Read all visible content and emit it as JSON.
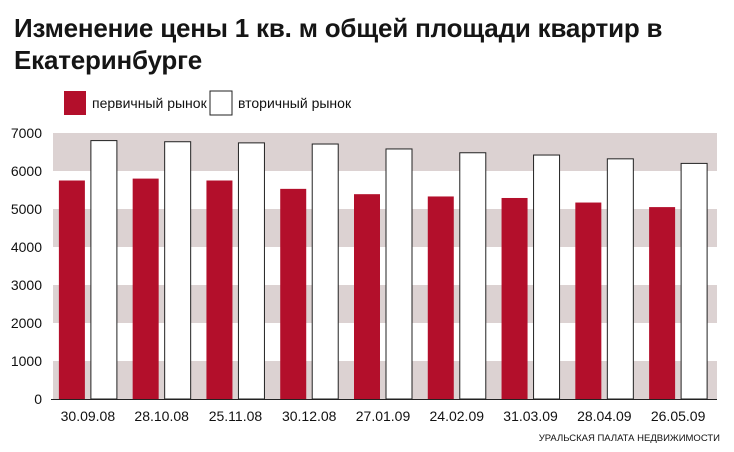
{
  "chart_data": {
    "type": "bar",
    "title": "Изменение цены 1 кв. м общей площади квартир в Екатеринбурге",
    "categories": [
      "30.09.08",
      "28.10.08",
      "25.11.08",
      "30.12.08",
      "27.01.09",
      "24.02.09",
      "31.03.09",
      "28.04.09",
      "26.05.09"
    ],
    "series": [
      {
        "name": "первичный рынок",
        "color": "#b30f2b",
        "values": [
          5750,
          5800,
          5750,
          5530,
          5390,
          5330,
          5290,
          5170,
          5050
        ]
      },
      {
        "name": "вторичный рынок",
        "color": "#ffffff",
        "values": [
          6800,
          6770,
          6740,
          6710,
          6580,
          6480,
          6420,
          6320,
          6200
        ]
      }
    ],
    "ylim": [
      0,
      7000
    ],
    "yticks": [
      0,
      1000,
      2000,
      3000,
      4000,
      5000,
      6000,
      7000
    ],
    "grid": "alternating horizontal bands",
    "band_color": "#dcd2d2",
    "legend_position": "top-left",
    "source": "УРАЛЬСКАЯ ПАЛАТА НЕДВИЖИМОСТИ",
    "xlabel": "",
    "ylabel": ""
  }
}
